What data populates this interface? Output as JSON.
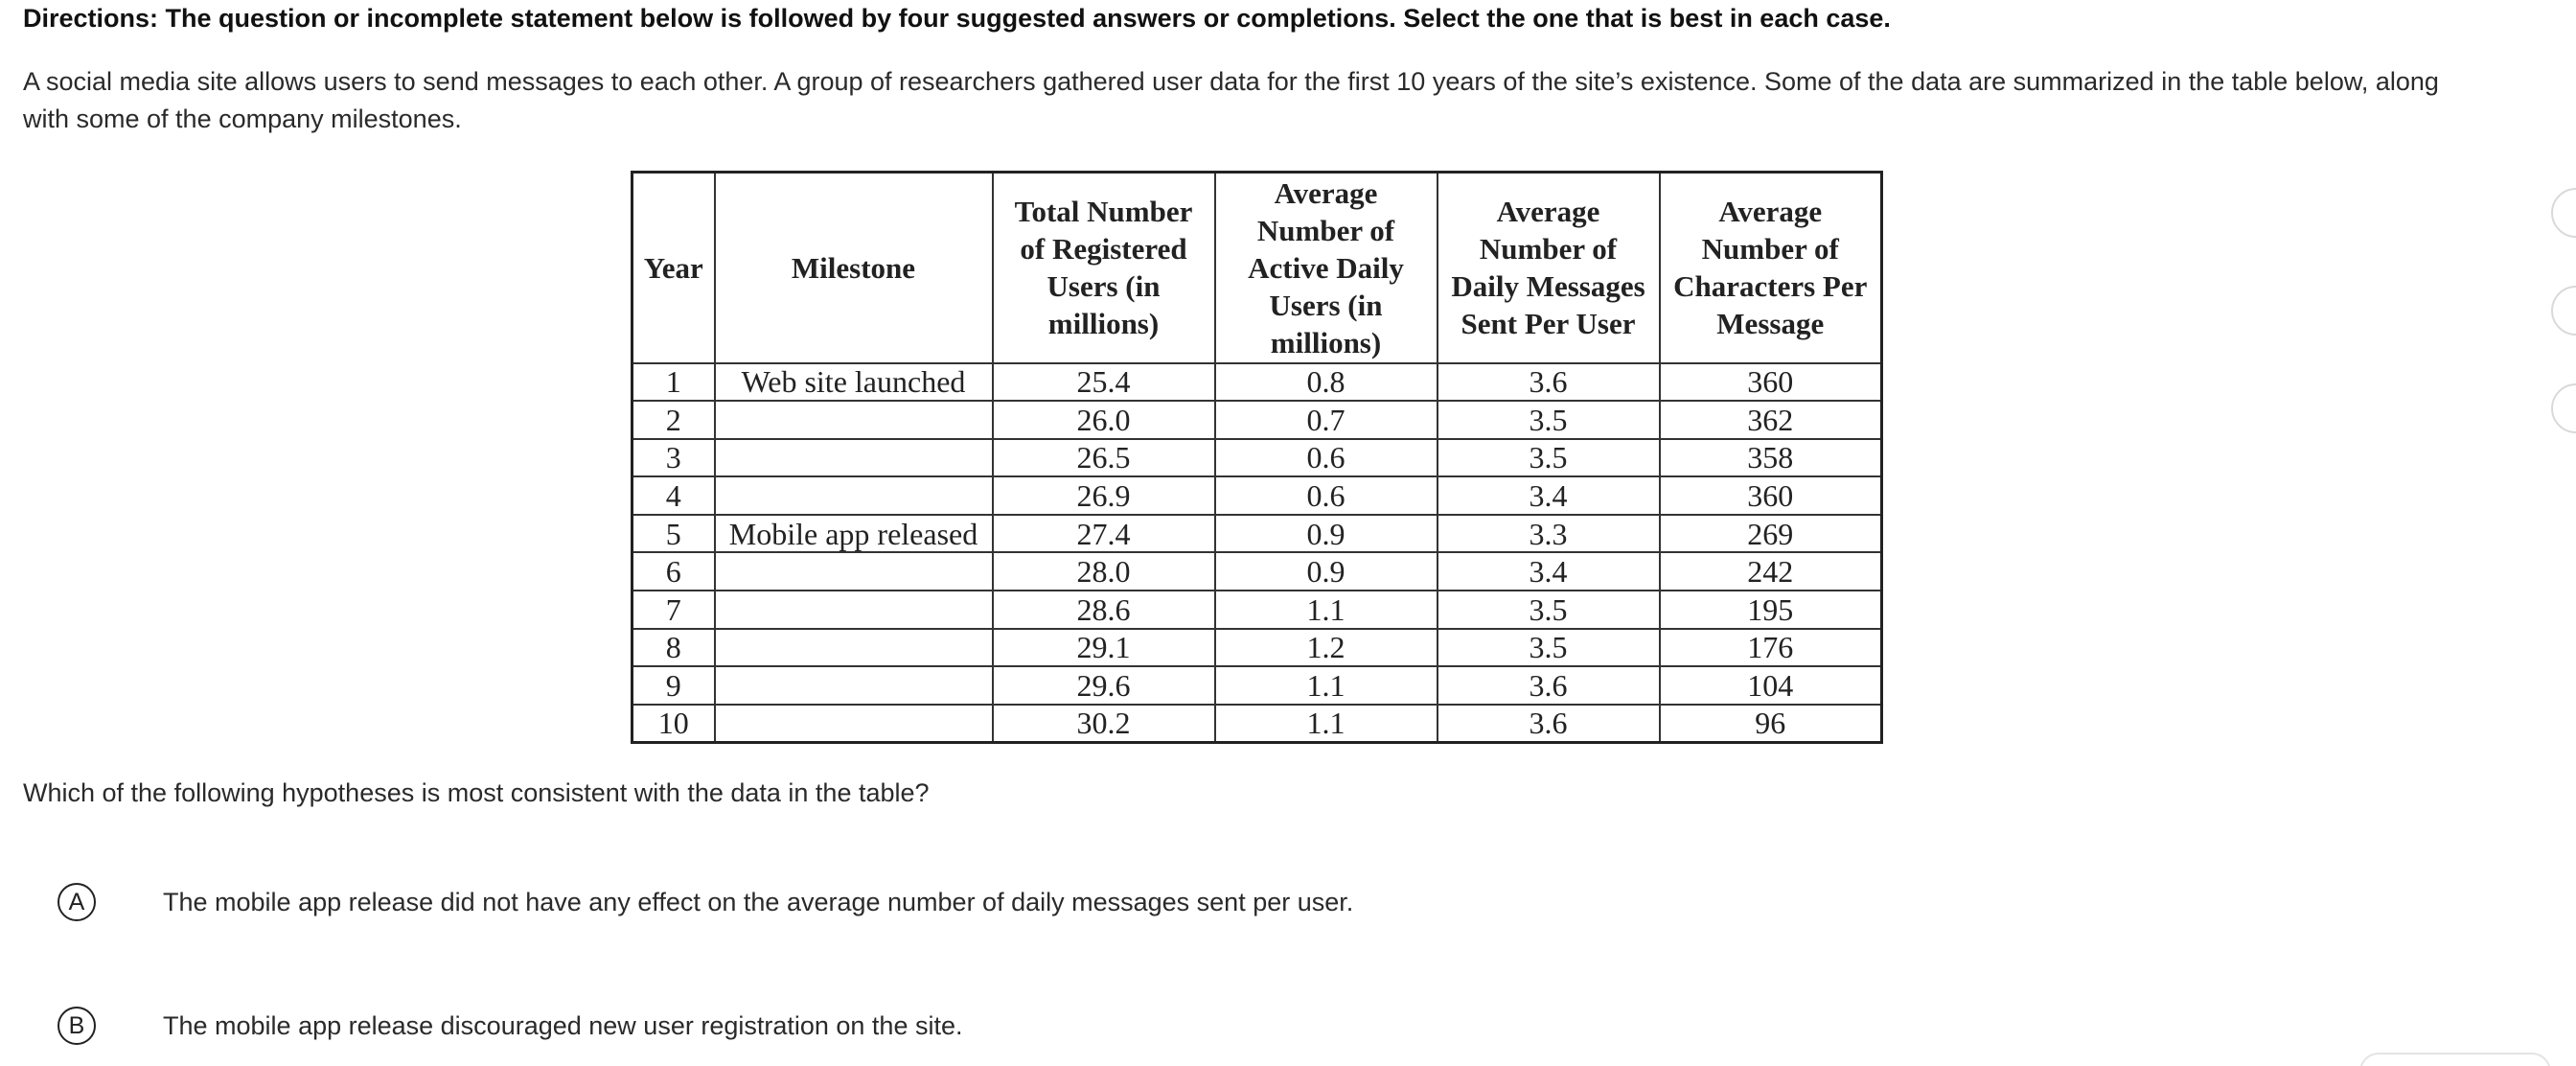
{
  "directions": "Directions: The question or incomplete statement below is followed by four suggested answers or completions. Select the one that is best in each case.",
  "stimulus": "A social media site allows users to send messages to each other. A group of researchers gathered user data for the first 10 years of the site’s existence. Some of the data are summarized in the table below, along with some of the company milestones.",
  "table": {
    "headers": [
      "Year",
      "Milestone",
      "Total Number of Registered Users (in millions)",
      "Average Number of Active Daily Users (in millions)",
      "Average Number of Daily Messages Sent Per User",
      "Average Number of Characters Per Message"
    ],
    "rows": [
      [
        "1",
        "Web site launched",
        "25.4",
        "0.8",
        "3.6",
        "360"
      ],
      [
        "2",
        "",
        "26.0",
        "0.7",
        "3.5",
        "362"
      ],
      [
        "3",
        "",
        "26.5",
        "0.6",
        "3.5",
        "358"
      ],
      [
        "4",
        "",
        "26.9",
        "0.6",
        "3.4",
        "360"
      ],
      [
        "5",
        "Mobile app released",
        "27.4",
        "0.9",
        "3.3",
        "269"
      ],
      [
        "6",
        "",
        "28.0",
        "0.9",
        "3.4",
        "242"
      ],
      [
        "7",
        "",
        "28.6",
        "1.1",
        "3.5",
        "195"
      ],
      [
        "8",
        "",
        "29.1",
        "1.2",
        "3.5",
        "176"
      ],
      [
        "9",
        "",
        "29.6",
        "1.1",
        "3.6",
        "104"
      ],
      [
        "10",
        "",
        "30.2",
        "1.1",
        "3.6",
        "96"
      ]
    ]
  },
  "question": "Which of the following hypotheses is most consistent with the data in the table?",
  "choices": [
    {
      "letter": "A",
      "text": "The mobile app release did not have any effect on the average number of daily messages sent per user."
    },
    {
      "letter": "B",
      "text": "The mobile app release discouraged new user registration on the site."
    }
  ]
}
